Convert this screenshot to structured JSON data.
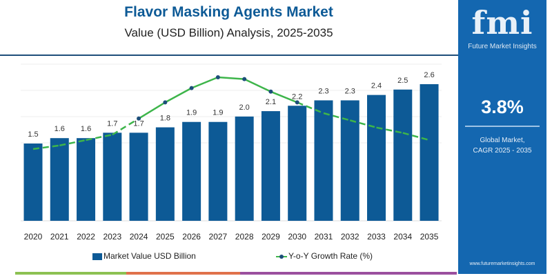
{
  "header": {
    "title": "Flavor Masking Agents Market",
    "subtitle": "Value (USD Billion) Analysis, 2025-2035"
  },
  "side_panel": {
    "logo_text": "fmi",
    "logo_subtitle": "Future Market Insights",
    "cagr_value": "3.8%",
    "cagr_label_line1": "Global Market,",
    "cagr_label_line2": "CAGR 2025 - 2035",
    "website": "www.futuremarketinsights.com",
    "background_color": "#1467b0"
  },
  "chart_data": {
    "type": "bar",
    "categories": [
      "2020",
      "2021",
      "2022",
      "2023",
      "2024",
      "2025",
      "2026",
      "2027",
      "2028",
      "2029",
      "2030",
      "2031",
      "2032",
      "2033",
      "2034",
      "2035"
    ],
    "series": [
      {
        "name": "Market Value USD Billion",
        "type": "bar",
        "color": "#0d5a96",
        "values": [
          1.5,
          1.6,
          1.6,
          1.7,
          1.7,
          1.8,
          1.9,
          1.9,
          2.0,
          2.1,
          2.2,
          2.3,
          2.3,
          2.4,
          2.5,
          2.6
        ],
        "labels": [
          "1.5",
          "1.6",
          "1.6",
          "1.7",
          "1.7",
          "1.8",
          "1.9",
          "1.9",
          "2.0",
          "2.1",
          "2.2",
          "2.3",
          "2.3",
          "2.4",
          "2.5",
          "2.6"
        ]
      },
      {
        "name": "Y-o-Y Growth Rate (%)",
        "type": "line",
        "color": "#3db54a",
        "values": [
          3.0,
          3.1,
          3.25,
          3.4,
          3.85,
          4.3,
          4.7,
          5.0,
          4.95,
          4.6,
          4.3,
          4.0,
          3.8,
          3.6,
          3.45,
          3.25
        ]
      }
    ],
    "grid": true,
    "legend_position": "bottom",
    "xlabel": "",
    "ylabel": ""
  },
  "legend": {
    "bar_label": "Market Value USD Billion",
    "line_label": "Y-o-Y Growth Rate (%)"
  },
  "strip_colors": [
    "#8cc152",
    "#e0714a",
    "#9b4f9e"
  ]
}
